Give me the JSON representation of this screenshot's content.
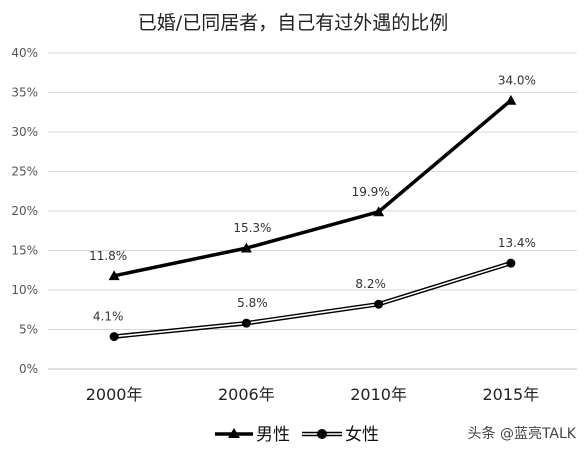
{
  "chart_data": {
    "type": "line",
    "title": "已婚/已同居者，自己有过外遇的比例",
    "categories": [
      "2000年",
      "2006年",
      "2010年",
      "2015年"
    ],
    "ylim": [
      0,
      40
    ],
    "yticks": [
      "0%",
      "5%",
      "10%",
      "15%",
      "20%",
      "25%",
      "30%",
      "35%",
      "40%"
    ],
    "grid": true,
    "legend_position": "bottom",
    "series": [
      {
        "name": "男性",
        "values": [
          11.8,
          15.3,
          19.9,
          34.0
        ],
        "labels": [
          "11.8%",
          "15.3%",
          "19.9%",
          "34.0%"
        ],
        "marker": "triangle",
        "line_style": "solid"
      },
      {
        "name": "女性",
        "values": [
          4.1,
          5.8,
          8.2,
          13.4
        ],
        "labels": [
          "4.1%",
          "5.8%",
          "8.2%",
          "13.4%"
        ],
        "marker": "circle",
        "line_style": "double"
      }
    ]
  },
  "watermark": "头条 @蓝亮TALK",
  "colors": {
    "series_line": "#000000",
    "grid": "#d9d9d9",
    "text": "#333333"
  }
}
